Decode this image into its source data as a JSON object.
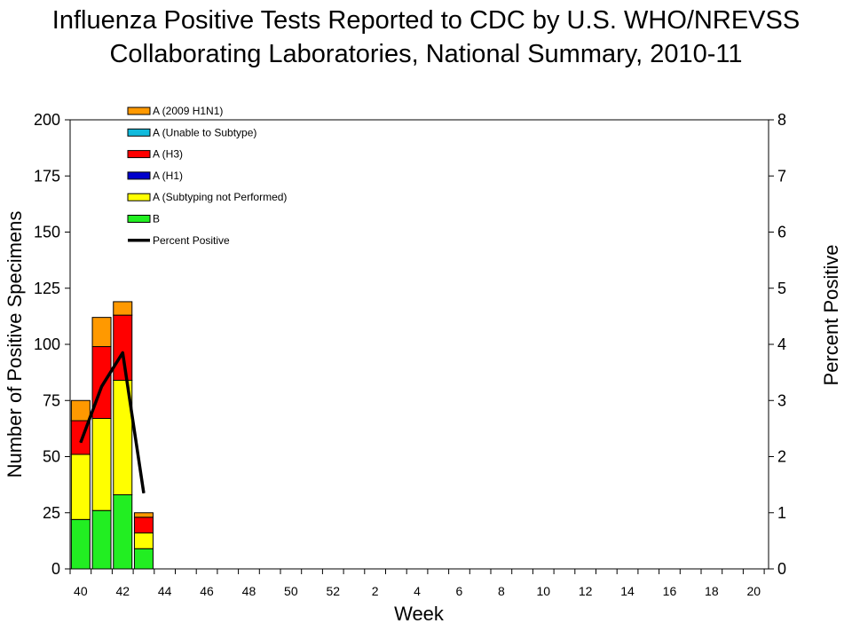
{
  "title_line1": "Influenza Positive Tests Reported to CDC by U.S. WHO/NREVSS",
  "title_line2": "Collaborating Laboratories, National Summary, 2010-11",
  "chart_data": {
    "type": "bar",
    "stacked": true,
    "secondary_axis": "line",
    "xlabel": "Week",
    "ylabel": "Number of Positive Specimens",
    "y2label": "Percent Positive",
    "ylim": [
      0,
      200
    ],
    "y2lim": [
      0,
      8
    ],
    "yticks": [
      0,
      25,
      50,
      75,
      100,
      125,
      150,
      175,
      200
    ],
    "y2ticks": [
      0,
      1,
      2,
      3,
      4,
      5,
      6,
      7,
      8
    ],
    "xtick_labels": [
      "40",
      "42",
      "44",
      "46",
      "48",
      "50",
      "52",
      "2",
      "4",
      "6",
      "8",
      "10",
      "12",
      "14",
      "16",
      "18",
      "20"
    ],
    "weeks": [
      "40",
      "41",
      "42",
      "43"
    ],
    "series": [
      {
        "name": "B",
        "color": "#22ee22",
        "values": [
          22,
          26,
          33,
          9
        ]
      },
      {
        "name": "A (Subtyping not Performed)",
        "color": "#ffff00",
        "values": [
          29,
          41,
          51,
          7
        ]
      },
      {
        "name": "A (H1)",
        "color": "#0000cc",
        "values": [
          0,
          0,
          0,
          0
        ]
      },
      {
        "name": "A (H3)",
        "color": "#ff0000",
        "values": [
          15,
          32,
          29,
          7
        ]
      },
      {
        "name": "A (Unable to Subtype)",
        "color": "#11bbdd",
        "values": [
          0,
          0,
          0,
          0
        ]
      },
      {
        "name": "A (2009 H1N1)",
        "color": "#ff9900",
        "values": [
          9,
          13,
          6,
          2
        ]
      }
    ],
    "line": {
      "name": "Percent Positive",
      "color": "#000000",
      "values": [
        2.25,
        3.25,
        3.85,
        1.35
      ]
    },
    "legend": [
      {
        "label": "A (2009 H1N1)",
        "color": "#ff9900",
        "kind": "box"
      },
      {
        "label": "A (Unable to Subtype)",
        "color": "#11bbdd",
        "kind": "box"
      },
      {
        "label": "A (H3)",
        "color": "#ff0000",
        "kind": "box"
      },
      {
        "label": "A (H1)",
        "color": "#0000cc",
        "kind": "box"
      },
      {
        "label": "A (Subtyping not Performed)",
        "color": "#ffff00",
        "kind": "box"
      },
      {
        "label": "B",
        "color": "#22ee22",
        "kind": "box"
      },
      {
        "label": "Percent Positive",
        "color": "#000000",
        "kind": "line"
      }
    ],
    "legend_position": "top-left"
  }
}
